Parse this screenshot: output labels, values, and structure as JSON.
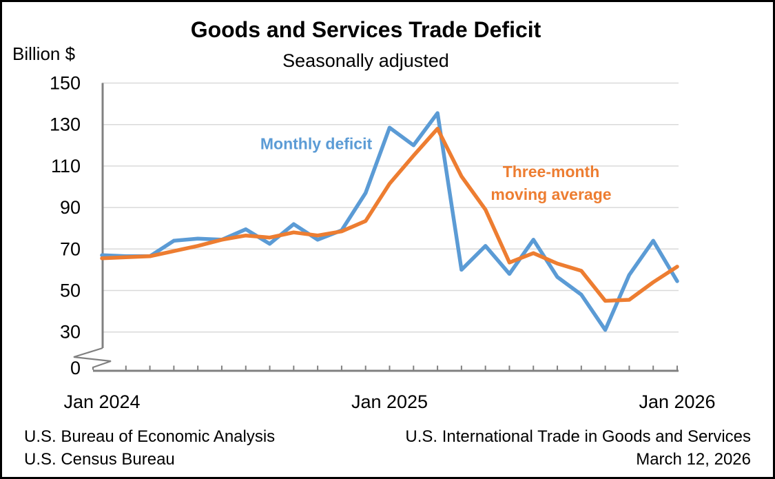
{
  "figure": {
    "title": "Goods and Services Trade Deficit",
    "subtitle": "Seasonally adjusted",
    "y_axis_unit": "Billion $"
  },
  "series_labels": {
    "monthly": "Monthly deficit",
    "moving_average_line1": "Three-month",
    "moving_average_line2": "moving average"
  },
  "footer": {
    "left_line1": "U.S. Bureau of Economic Analysis",
    "left_line2": "U.S. Census Bureau",
    "right_line1": "U.S. International Trade in Goods and Services",
    "right_line2": "March 12, 2026"
  },
  "colors": {
    "monthly_deficit": "#5B9BD5",
    "moving_average": "#ED7D31",
    "gridline": "#D9D9D9",
    "axis": "#808080",
    "text": "#000000",
    "border": "#000000"
  },
  "chart_data": {
    "type": "line",
    "title": "Goods and Services Trade Deficit",
    "subtitle": "Seasonally adjusted",
    "ylabel": "Billion $",
    "grid": "horizontal",
    "legend_position": "inline-annotations",
    "y_axis_break_between": [
      0,
      30
    ],
    "ylim_plotted": [
      30,
      150
    ],
    "y_tick_labels": [
      150,
      130,
      110,
      90,
      70,
      50,
      30,
      0
    ],
    "categories": [
      "Jan 2024",
      "Feb 2024",
      "Mar 2024",
      "Apr 2024",
      "May 2024",
      "Jun 2024",
      "Jul 2024",
      "Aug 2024",
      "Sep 2024",
      "Oct 2024",
      "Nov 2024",
      "Dec 2024",
      "Jan 2025",
      "Feb 2025",
      "Mar 2025",
      "Apr 2025",
      "May 2025",
      "Jun 2025",
      "Jul 2025",
      "Aug 2025",
      "Sep 2025",
      "Oct 2025",
      "Nov 2025",
      "Dec 2025",
      "Jan 2026"
    ],
    "x_labels": [
      {
        "label": "Jan 2024",
        "month_index": 0
      },
      {
        "label": "Jan 2025",
        "month_index": 12
      },
      {
        "label": "Jan 2026",
        "month_index": 24
      }
    ],
    "series": [
      {
        "name": "Monthly deficit",
        "color": "#5B9BD5",
        "values": [
          67,
          66.5,
          66.5,
          74,
          75,
          74.5,
          79.5,
          72.5,
          82,
          74.5,
          79,
          97,
          128.5,
          120,
          135.5,
          60,
          71.5,
          58,
          74.5,
          56.5,
          48,
          31,
          57.5,
          74,
          54.5
        ]
      },
      {
        "name": "Three-month moving average",
        "color": "#ED7D31",
        "values": [
          65.5,
          66,
          66.5,
          69,
          71.5,
          74.5,
          76.5,
          75.5,
          78,
          76.5,
          78.5,
          83.5,
          101.5,
          115,
          128,
          105,
          89,
          63.5,
          68,
          63,
          59.5,
          45,
          45.5,
          54,
          61.5
        ]
      }
    ]
  }
}
